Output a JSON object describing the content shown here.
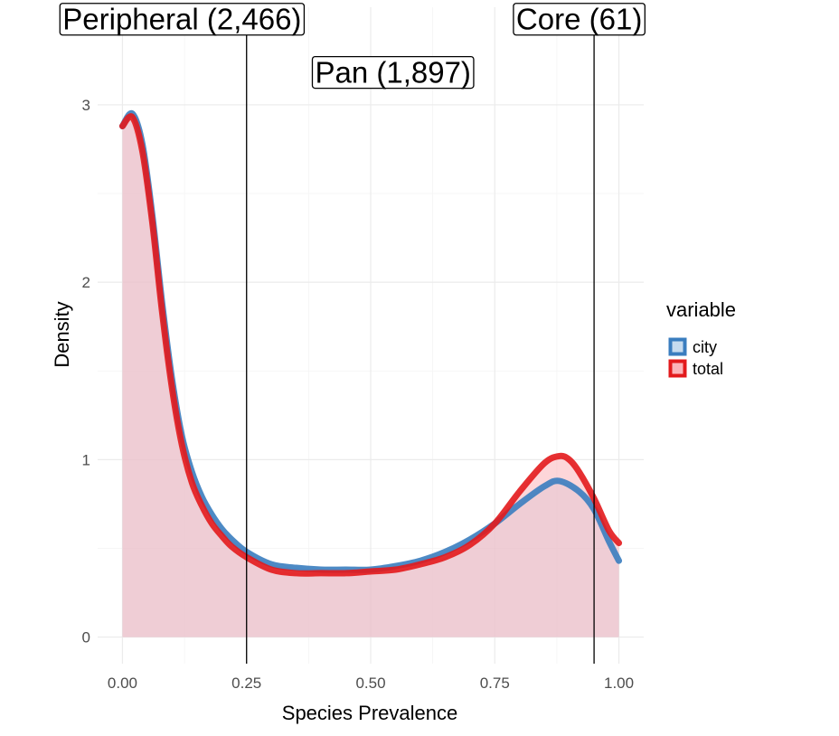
{
  "chart_data": {
    "type": "area",
    "xlabel": "Species Prevalence",
    "ylabel": "Density",
    "xlim": [
      -0.05,
      1.05
    ],
    "ylim": [
      -0.15,
      3.55
    ],
    "x_ticks": [
      0.0,
      0.25,
      0.5,
      0.75,
      1.0
    ],
    "x_tick_labels": [
      "0.00",
      "0.25",
      "0.50",
      "0.75",
      "1.00"
    ],
    "y_ticks": [
      0,
      1,
      2,
      3
    ],
    "y_tick_labels": [
      "0",
      "1",
      "2",
      "3"
    ],
    "grid": true,
    "legend": {
      "title": "variable",
      "placement": "right"
    },
    "vlines": [
      0.25,
      0.95
    ],
    "annotations": [
      {
        "label": "Peripheral (2,466)",
        "x": 0.12,
        "y": 3.48
      },
      {
        "label": "Pan (1,897)",
        "x": 0.545,
        "y": 3.18
      },
      {
        "label": "Core (61)",
        "x": 0.92,
        "y": 3.48
      }
    ],
    "series": [
      {
        "name": "city",
        "line_color": "#3a7dbf",
        "fill_color": "#c6dbef",
        "x": [
          0.0,
          0.02,
          0.04,
          0.06,
          0.08,
          0.1,
          0.12,
          0.14,
          0.16,
          0.18,
          0.2,
          0.22,
          0.25,
          0.3,
          0.35,
          0.4,
          0.45,
          0.5,
          0.55,
          0.6,
          0.65,
          0.7,
          0.75,
          0.8,
          0.85,
          0.88,
          0.92,
          0.95,
          0.98,
          1.0
        ],
        "y": [
          2.88,
          2.95,
          2.78,
          2.38,
          1.88,
          1.45,
          1.13,
          0.93,
          0.79,
          0.69,
          0.61,
          0.55,
          0.48,
          0.41,
          0.39,
          0.38,
          0.38,
          0.38,
          0.4,
          0.43,
          0.48,
          0.55,
          0.64,
          0.75,
          0.85,
          0.88,
          0.82,
          0.72,
          0.54,
          0.43
        ]
      },
      {
        "name": "total",
        "line_color": "#e31a1c",
        "fill_color": "#fbb4b9",
        "x": [
          0.0,
          0.02,
          0.04,
          0.06,
          0.08,
          0.1,
          0.12,
          0.14,
          0.16,
          0.18,
          0.2,
          0.22,
          0.25,
          0.3,
          0.35,
          0.4,
          0.45,
          0.5,
          0.55,
          0.6,
          0.65,
          0.7,
          0.75,
          0.8,
          0.85,
          0.88,
          0.9,
          0.92,
          0.95,
          0.98,
          1.0
        ],
        "y": [
          2.88,
          2.93,
          2.74,
          2.34,
          1.83,
          1.4,
          1.08,
          0.87,
          0.74,
          0.64,
          0.57,
          0.51,
          0.45,
          0.38,
          0.36,
          0.36,
          0.36,
          0.37,
          0.38,
          0.41,
          0.45,
          0.52,
          0.64,
          0.82,
          0.98,
          1.02,
          1.0,
          0.93,
          0.78,
          0.6,
          0.53
        ]
      }
    ]
  }
}
